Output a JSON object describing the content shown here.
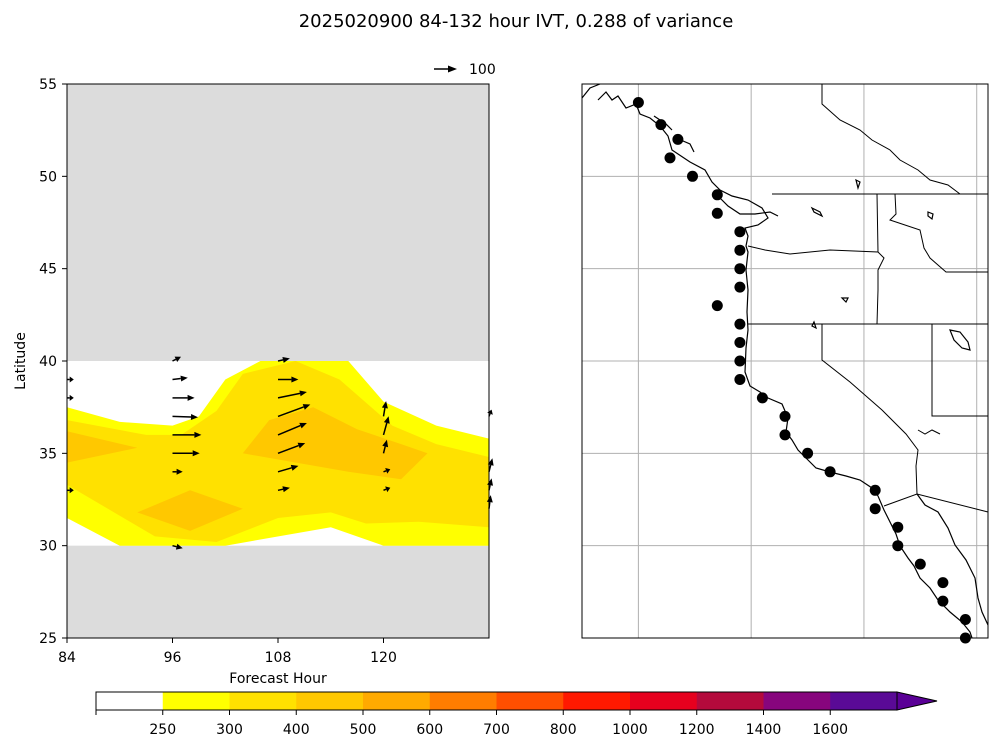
{
  "figure": {
    "title": "2025020900 84-132 hour IVT, 0.288 of variance"
  },
  "chart_data": [
    {
      "type": "heatmap",
      "subtype": "filled-contour-with-quiver",
      "xlabel": "Forecast Hour",
      "ylabel": "Latitude",
      "xlim": [
        84,
        132
      ],
      "ylim": [
        25,
        55
      ],
      "xticks": [
        "84",
        "96",
        "108",
        "120"
      ],
      "yticks": [
        "25",
        "30",
        "35",
        "40",
        "45",
        "50",
        "55"
      ],
      "masked_color": "#dcdcdc",
      "data_lat_range": [
        30,
        40
      ],
      "quiver_key": {
        "value": 100,
        "label": "100"
      },
      "contour_regions": [
        {
          "level": 250,
          "color": "#ffff00",
          "points": [
            [
              84,
              37.5
            ],
            [
              90,
              36.7
            ],
            [
              96,
              36.5
            ],
            [
              99,
              37
            ],
            [
              102,
              39
            ],
            [
              106,
              40
            ],
            [
              116,
              40
            ],
            [
              120,
              37.8
            ],
            [
              126,
              36.5
            ],
            [
              132,
              35.8
            ],
            [
              132,
              30
            ],
            [
              120,
              30
            ],
            [
              114,
              31
            ],
            [
              102,
              30
            ],
            [
              90,
              30
            ],
            [
              84,
              31.5
            ]
          ]
        },
        {
          "level": 300,
          "color": "#ffe100",
          "points": [
            [
              84,
              36.8
            ],
            [
              93,
              36
            ],
            [
              97,
              36
            ],
            [
              101,
              37.3
            ],
            [
              104,
              39.3
            ],
            [
              110,
              40
            ],
            [
              115,
              39
            ],
            [
              121,
              36.5
            ],
            [
              126,
              35.5
            ],
            [
              132,
              34.8
            ],
            [
              132,
              31
            ],
            [
              124,
              31.3
            ],
            [
              118,
              31.2
            ],
            [
              114,
              31.8
            ],
            [
              108,
              31.5
            ],
            [
              101,
              30.2
            ],
            [
              94,
              30.5
            ],
            [
              84,
              33.3
            ]
          ]
        },
        {
          "level": 400,
          "color": "#ffc800",
          "points": [
            [
              84,
              36.2
            ],
            [
              92,
              35.3
            ],
            [
              84,
              34.5
            ]
          ]
        },
        {
          "level": 400,
          "color": "#ffc800",
          "points": [
            [
              92,
              31.8
            ],
            [
              98,
              33
            ],
            [
              104,
              32
            ],
            [
              98,
              30.8
            ]
          ]
        },
        {
          "level": 400,
          "color": "#ffc800",
          "points": [
            [
              104,
              35
            ],
            [
              107,
              36.8
            ],
            [
              112,
              37.5
            ],
            [
              117,
              36.3
            ],
            [
              122,
              35.5
            ],
            [
              125,
              35
            ],
            [
              122,
              33.6
            ],
            [
              116,
              34
            ]
          ]
        }
      ],
      "vectors": [
        {
          "hour": 84,
          "lat": 39,
          "u": 8,
          "v": 0
        },
        {
          "hour": 84,
          "lat": 38,
          "u": 8,
          "v": 0
        },
        {
          "hour": 84,
          "lat": 33,
          "u": 8,
          "v": 0
        },
        {
          "hour": 96,
          "lat": 40,
          "u": 10,
          "v": 5
        },
        {
          "hour": 96,
          "lat": 39,
          "u": 18,
          "v": 2
        },
        {
          "hour": 96,
          "lat": 38,
          "u": 26,
          "v": 0
        },
        {
          "hour": 96,
          "lat": 37,
          "u": 30,
          "v": -1
        },
        {
          "hour": 96,
          "lat": 36,
          "u": 34,
          "v": 0
        },
        {
          "hour": 96,
          "lat": 35,
          "u": 32,
          "v": 0
        },
        {
          "hour": 96,
          "lat": 34,
          "u": 12,
          "v": 0
        },
        {
          "hour": 96,
          "lat": 30,
          "u": 12,
          "v": -3
        },
        {
          "hour": 108,
          "lat": 40,
          "u": 14,
          "v": 3
        },
        {
          "hour": 108,
          "lat": 39,
          "u": 24,
          "v": 0
        },
        {
          "hour": 108,
          "lat": 38,
          "u": 34,
          "v": 7
        },
        {
          "hour": 108,
          "lat": 37,
          "u": 38,
          "v": 14
        },
        {
          "hour": 108,
          "lat": 36,
          "u": 34,
          "v": 14
        },
        {
          "hour": 108,
          "lat": 35,
          "u": 32,
          "v": 12
        },
        {
          "hour": 108,
          "lat": 34,
          "u": 24,
          "v": 7
        },
        {
          "hour": 108,
          "lat": 33,
          "u": 14,
          "v": 3
        },
        {
          "hour": 120,
          "lat": 37,
          "u": 3,
          "v": 18
        },
        {
          "hour": 120,
          "lat": 36,
          "u": 6,
          "v": 22
        },
        {
          "hour": 120,
          "lat": 35,
          "u": 4,
          "v": 16
        },
        {
          "hour": 120,
          "lat": 34,
          "u": 8,
          "v": 3
        },
        {
          "hour": 120,
          "lat": 33,
          "u": 8,
          "v": 3
        },
        {
          "hour": 132,
          "lat": 37,
          "u": 3,
          "v": 8
        },
        {
          "hour": 132,
          "lat": 34,
          "u": 4,
          "v": 16
        },
        {
          "hour": 132,
          "lat": 33,
          "u": 3,
          "v": 14
        },
        {
          "hour": 132,
          "lat": 32,
          "u": 2,
          "v": 16
        }
      ]
    },
    {
      "type": "scatter",
      "subtype": "map",
      "region": "West coast of North America",
      "lon_range": [
        -140,
        -104
      ],
      "lat_range": [
        25,
        55
      ],
      "gridlines_lon": [
        -135,
        -125,
        -115,
        -105
      ],
      "gridlines_lat": [
        30,
        35,
        40,
        45,
        50
      ],
      "grid": true,
      "marker_color": "#000000",
      "points": [
        {
          "lon": -135,
          "lat": 54
        },
        {
          "lon": -133,
          "lat": 52.8
        },
        {
          "lon": -131.5,
          "lat": 52
        },
        {
          "lon": -132.2,
          "lat": 51
        },
        {
          "lon": -130.2,
          "lat": 50
        },
        {
          "lon": -128,
          "lat": 49
        },
        {
          "lon": -128,
          "lat": 48
        },
        {
          "lon": -126,
          "lat": 47
        },
        {
          "lon": -126,
          "lat": 46
        },
        {
          "lon": -126,
          "lat": 45
        },
        {
          "lon": -126,
          "lat": 44
        },
        {
          "lon": -128,
          "lat": 43
        },
        {
          "lon": -126,
          "lat": 42
        },
        {
          "lon": -126,
          "lat": 41
        },
        {
          "lon": -126,
          "lat": 40
        },
        {
          "lon": -126,
          "lat": 39
        },
        {
          "lon": -124,
          "lat": 38
        },
        {
          "lon": -122,
          "lat": 37
        },
        {
          "lon": -122,
          "lat": 36
        },
        {
          "lon": -120,
          "lat": 35
        },
        {
          "lon": -118,
          "lat": 34
        },
        {
          "lon": -114,
          "lat": 33
        },
        {
          "lon": -114,
          "lat": 32
        },
        {
          "lon": -112,
          "lat": 31
        },
        {
          "lon": -112,
          "lat": 30
        },
        {
          "lon": -110,
          "lat": 29
        },
        {
          "lon": -108,
          "lat": 28
        },
        {
          "lon": -108,
          "lat": 27
        },
        {
          "lon": -106,
          "lat": 26
        },
        {
          "lon": -106,
          "lat": 25
        }
      ]
    }
  ],
  "colorbar": {
    "type": "colorbar",
    "extend": "max",
    "segments": [
      {
        "color": "#ffffff",
        "label": "250"
      },
      {
        "color": "#ffff00",
        "label": "300"
      },
      {
        "color": "#ffe100",
        "label": "400"
      },
      {
        "color": "#ffc800",
        "label": "500"
      },
      {
        "color": "#ffaa00",
        "label": "600"
      },
      {
        "color": "#ff7d00",
        "label": "700"
      },
      {
        "color": "#ff4f00",
        "label": "800"
      },
      {
        "color": "#ff1900",
        "label": "1000"
      },
      {
        "color": "#e6001e",
        "label": "1200"
      },
      {
        "color": "#b40a3c",
        "label": "1400"
      },
      {
        "color": "#87057d",
        "label": "1600"
      },
      {
        "color": "#5a0a96",
        "label": ""
      }
    ],
    "extend_color": "#5a0096"
  }
}
